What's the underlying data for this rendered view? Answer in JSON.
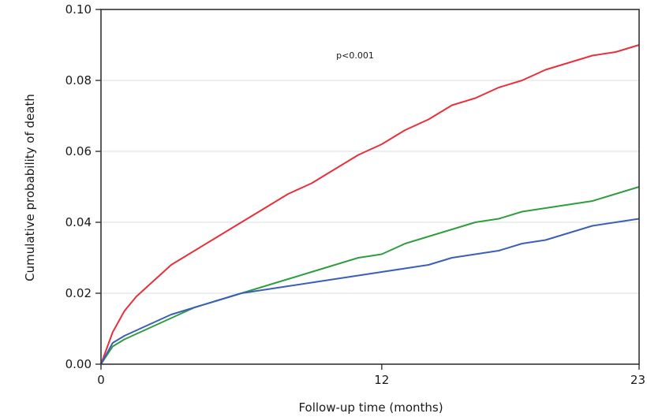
{
  "chart_data": {
    "type": "line",
    "title": "",
    "xlabel": "Follow-up time (months)",
    "ylabel": "Cumulative probability of death",
    "xlim": [
      0,
      23
    ],
    "ylim": [
      0,
      0.1
    ],
    "x_ticks": [
      0,
      12,
      23
    ],
    "x_tick_labels": [
      "0",
      "12",
      "23"
    ],
    "y_ticks": [
      0,
      0.02,
      0.04,
      0.06,
      0.08,
      0.1
    ],
    "y_tick_labels": [
      "0.00",
      "0.02",
      "0.04",
      "0.06",
      "0.08",
      "0.10"
    ],
    "grid": "horizontal",
    "legend": "none",
    "annotation": "p<0.001",
    "series": [
      {
        "color": "#e8303a",
        "x": [
          0,
          0.5,
          1,
          1.5,
          2,
          3,
          4,
          5,
          6,
          7,
          8,
          9,
          10,
          11,
          12,
          13,
          14,
          15,
          16,
          17,
          18,
          19,
          20,
          21,
          22,
          23
        ],
        "y": [
          0,
          0.009,
          0.015,
          0.019,
          0.022,
          0.028,
          0.032,
          0.036,
          0.04,
          0.044,
          0.048,
          0.051,
          0.055,
          0.059,
          0.062,
          0.066,
          0.069,
          0.073,
          0.075,
          0.078,
          0.08,
          0.083,
          0.085,
          0.087,
          0.088,
          0.09
        ]
      },
      {
        "color": "#2f9e3e",
        "x": [
          0,
          0.5,
          1,
          2,
          3,
          4,
          5,
          6,
          7,
          8,
          9,
          10,
          11,
          12,
          13,
          14,
          15,
          16,
          17,
          18,
          19,
          20,
          21,
          22,
          23
        ],
        "y": [
          0,
          0.005,
          0.007,
          0.01,
          0.013,
          0.016,
          0.018,
          0.02,
          0.022,
          0.024,
          0.026,
          0.028,
          0.03,
          0.031,
          0.034,
          0.036,
          0.038,
          0.04,
          0.041,
          0.043,
          0.044,
          0.045,
          0.046,
          0.048,
          0.05
        ]
      },
      {
        "color": "#3b5fb8",
        "x": [
          0,
          0.5,
          1,
          2,
          3,
          4,
          5,
          6,
          7,
          8,
          9,
          10,
          11,
          12,
          13,
          14,
          15,
          16,
          17,
          18,
          19,
          20,
          21,
          22,
          23
        ],
        "y": [
          0,
          0.006,
          0.008,
          0.011,
          0.014,
          0.016,
          0.018,
          0.02,
          0.021,
          0.022,
          0.023,
          0.024,
          0.025,
          0.026,
          0.027,
          0.028,
          0.03,
          0.031,
          0.032,
          0.034,
          0.035,
          0.037,
          0.039,
          0.04,
          0.041
        ]
      }
    ]
  }
}
